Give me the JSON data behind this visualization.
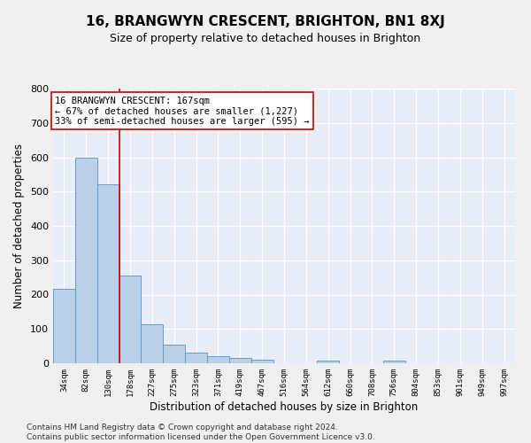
{
  "title": "16, BRANGWYN CRESCENT, BRIGHTON, BN1 8XJ",
  "subtitle": "Size of property relative to detached houses in Brighton",
  "xlabel": "Distribution of detached houses by size in Brighton",
  "ylabel": "Number of detached properties",
  "categories": [
    "34sqm",
    "82sqm",
    "130sqm",
    "178sqm",
    "227sqm",
    "275sqm",
    "323sqm",
    "371sqm",
    "419sqm",
    "467sqm",
    "516sqm",
    "564sqm",
    "612sqm",
    "660sqm",
    "708sqm",
    "756sqm",
    "804sqm",
    "853sqm",
    "901sqm",
    "949sqm",
    "997sqm"
  ],
  "values": [
    218,
    600,
    522,
    255,
    113,
    53,
    31,
    20,
    16,
    10,
    0,
    0,
    9,
    0,
    0,
    8,
    0,
    0,
    0,
    0,
    0
  ],
  "bar_color": "#b8d0e8",
  "bar_edge_color": "#6090c0",
  "red_line_x": 2.5,
  "annotation_text": "16 BRANGWYN CRESCENT: 167sqm\n← 67% of detached houses are smaller (1,227)\n33% of semi-detached houses are larger (595) →",
  "annotation_box_color": "#ffffff",
  "annotation_box_edge_color": "#cc0000",
  "ylim": [
    0,
    800
  ],
  "yticks": [
    0,
    100,
    200,
    300,
    400,
    500,
    600,
    700,
    800
  ],
  "background_color": "#e8eef8",
  "grid_color": "#ffffff",
  "footer": "Contains HM Land Registry data © Crown copyright and database right 2024.\nContains public sector information licensed under the Open Government Licence v3.0.",
  "title_fontsize": 11,
  "subtitle_fontsize": 9,
  "xlabel_fontsize": 8.5,
  "ylabel_fontsize": 8.5,
  "footer_fontsize": 6.5,
  "annot_fontsize": 7.5
}
